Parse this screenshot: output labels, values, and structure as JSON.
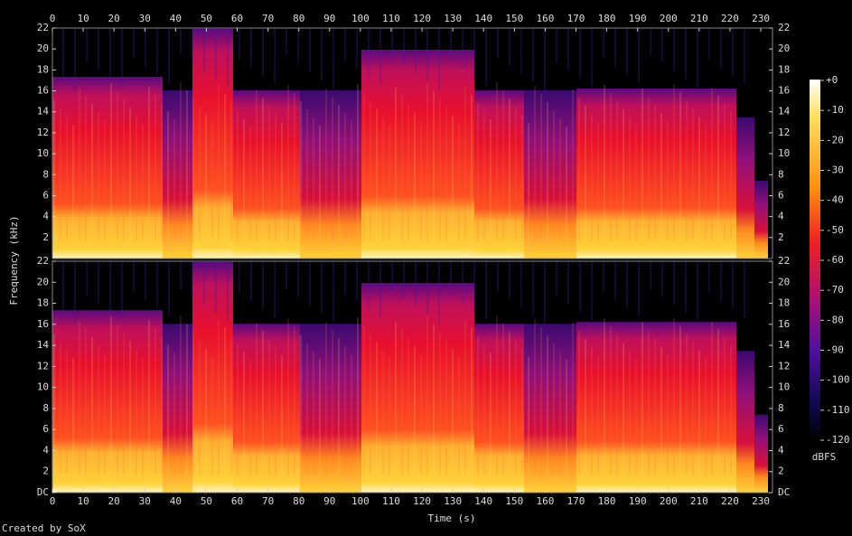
{
  "chart_data": {
    "type": "spectrogram",
    "xlabel": "Time (s)",
    "ylabel": "Frequency (kHz)",
    "xlim": [
      0,
      233.8
    ],
    "xticks": [
      0,
      10,
      20,
      30,
      40,
      50,
      60,
      70,
      80,
      90,
      100,
      110,
      120,
      130,
      140,
      150,
      160,
      170,
      180,
      190,
      200,
      210,
      220,
      230
    ],
    "panels": [
      {
        "ylim": [
          0,
          22
        ],
        "yticks": [
          2,
          4,
          6,
          8,
          10,
          12,
          14,
          16,
          18,
          20,
          22
        ]
      },
      {
        "ylim": [
          0,
          22
        ],
        "yticks": [
          {
            "value": 0,
            "label": "DC"
          },
          2,
          4,
          6,
          8,
          10,
          12,
          14,
          16,
          18,
          20,
          22
        ]
      }
    ],
    "colorbar": {
      "label": "dBFS",
      "lim": [
        -120,
        0
      ],
      "ticks": [
        {
          "value": 0,
          "label": "+0"
        },
        -10,
        -20,
        -30,
        -40,
        -50,
        -60,
        -70,
        -80,
        -90,
        -100,
        -110,
        -120
      ]
    },
    "footer": "Created by SoX"
  }
}
